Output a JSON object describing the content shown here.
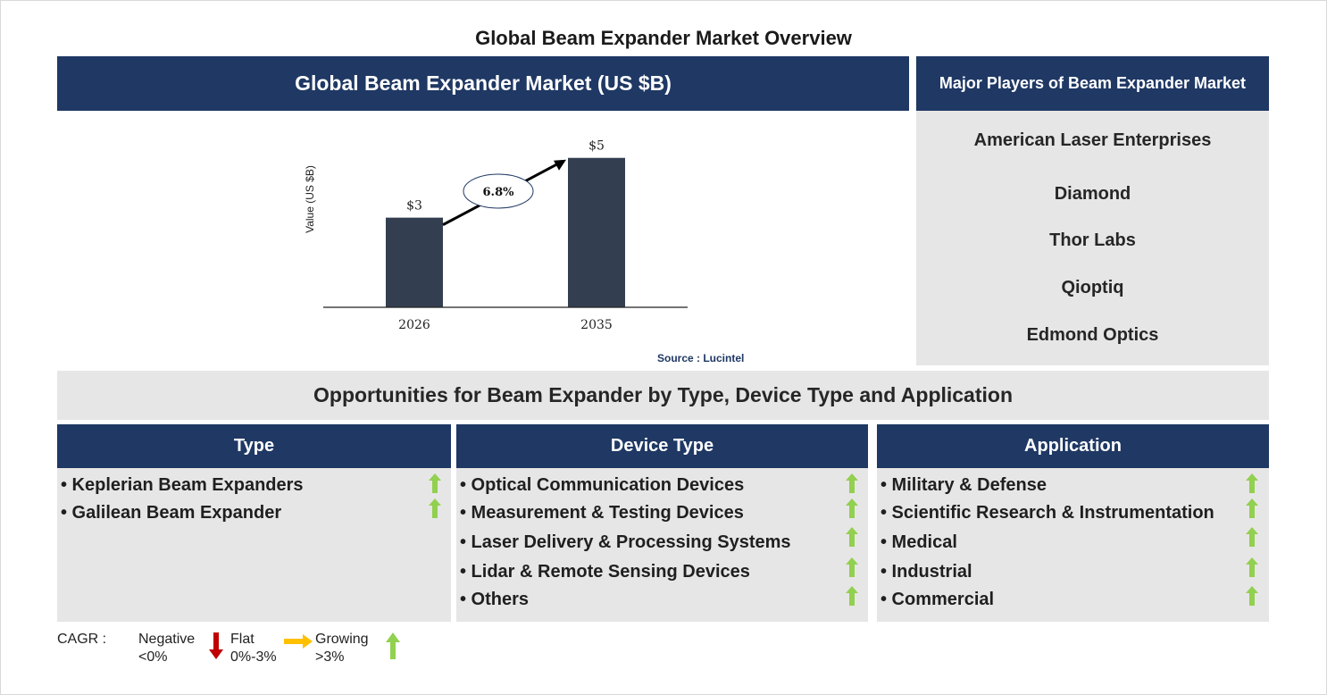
{
  "page_title": "Global Beam Expander Market Overview",
  "chart_header": "Global Beam Expander Market (US $B)",
  "players_header": "Major Players of Beam Expander Market",
  "players": [
    "American Laser Enterprises",
    "Diamond",
    "Thor Labs",
    "Qioptiq",
    "Edmond Optics"
  ],
  "source": "Source : Lucintel",
  "opportunities_header": "Opportunities for Beam Expander by Type, Device Type and Application",
  "columns": [
    {
      "title": "Type",
      "items": [
        "• Keplerian Beam Expanders",
        "• Galilean Beam Expander"
      ]
    },
    {
      "title": "Device Type",
      "items": [
        "• Optical Communication Devices",
        "• Measurement & Testing Devices",
        "• Laser Delivery & Processing Systems",
        "• Lidar & Remote Sensing Devices",
        "• Others"
      ]
    },
    {
      "title": "Application",
      "items": [
        "• Military & Defense",
        "• Scientific Research & Instrumentation",
        "• Medical",
        "• Industrial",
        "• Commercial"
      ]
    }
  ],
  "legend": {
    "cagr_label": "CAGR :",
    "negative": {
      "label": "Negative",
      "range": "<0%",
      "color": "#c00000"
    },
    "flat": {
      "label": "Flat",
      "range": "0%-3%",
      "color": "#ffc000"
    },
    "growing": {
      "label": "Growing",
      "range": ">3%",
      "color": "#92d050"
    }
  },
  "chart_data": {
    "type": "bar",
    "categories": [
      "2026",
      "2035"
    ],
    "values": [
      3,
      5
    ],
    "value_labels": [
      "$3",
      "$5"
    ],
    "ylabel": "Value (US $B)",
    "cagr_label": "6.8%",
    "bar_color": "#333f50",
    "ylim": [
      0,
      5.5
    ]
  }
}
